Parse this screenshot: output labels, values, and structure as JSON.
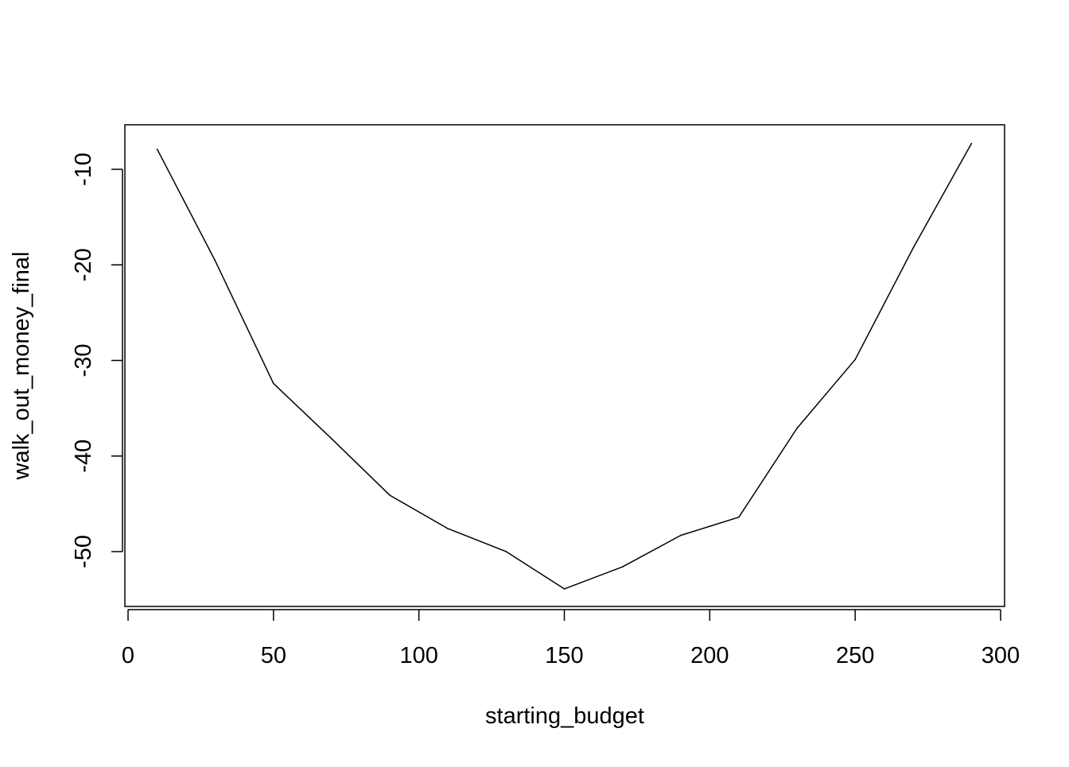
{
  "chart_data": {
    "type": "line",
    "title": "",
    "xlabel": "starting_budget",
    "ylabel": "walk_out_money_final",
    "x": [
      10,
      30,
      50,
      70,
      90,
      110,
      130,
      150,
      170,
      190,
      210,
      230,
      250,
      270,
      290
    ],
    "series": [
      {
        "values": [
          -7.9,
          -19.6,
          -32.4,
          -38.2,
          -44.1,
          -47.6,
          -50.0,
          -53.9,
          -51.6,
          -48.3,
          -46.4,
          -37.1,
          -29.9,
          -18.2,
          -7.3
        ]
      }
    ],
    "xlim": [
      0,
      300
    ],
    "ylim": [
      -55,
      -5
    ],
    "x_ticks": [
      "0",
      "50",
      "100",
      "150",
      "200",
      "250",
      "300"
    ],
    "y_ticks": [
      "-10",
      "-20",
      "-30",
      "-40",
      "-50"
    ],
    "grid": false,
    "legend": "none",
    "line_color": "#000000"
  }
}
